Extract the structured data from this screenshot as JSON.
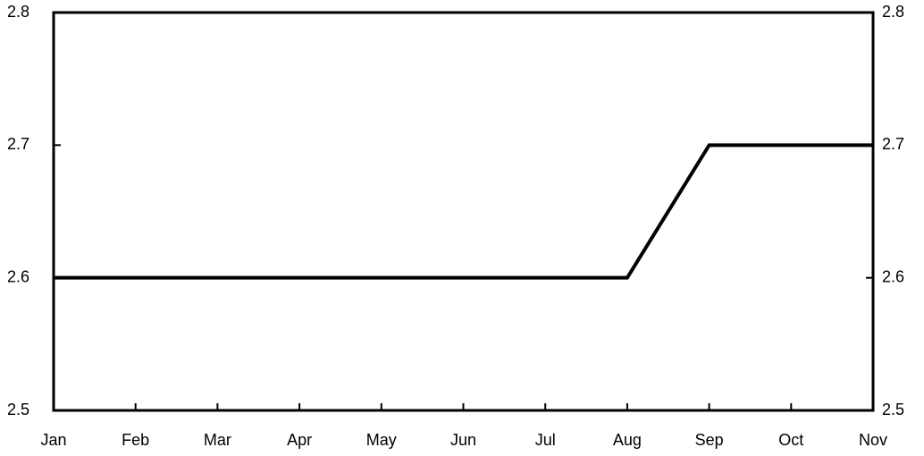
{
  "chart_data": {
    "type": "line",
    "categories": [
      "Jan",
      "Feb",
      "Mar",
      "Apr",
      "May",
      "Jun",
      "Jul",
      "Aug",
      "Sep",
      "Oct",
      "Nov"
    ],
    "series": [
      {
        "color": "#000000",
        "values": [
          2.6,
          2.6,
          2.6,
          2.6,
          2.6,
          2.6,
          2.6,
          2.6,
          2.7,
          2.7,
          2.7
        ]
      }
    ],
    "ylim": [
      2.5,
      2.8
    ],
    "yticks": [
      2.5,
      2.6,
      2.7,
      2.8
    ],
    "y2lim": [
      2.5,
      2.8
    ],
    "y2ticks": [
      2.5,
      2.6,
      2.7,
      2.8
    ],
    "grid": false
  }
}
